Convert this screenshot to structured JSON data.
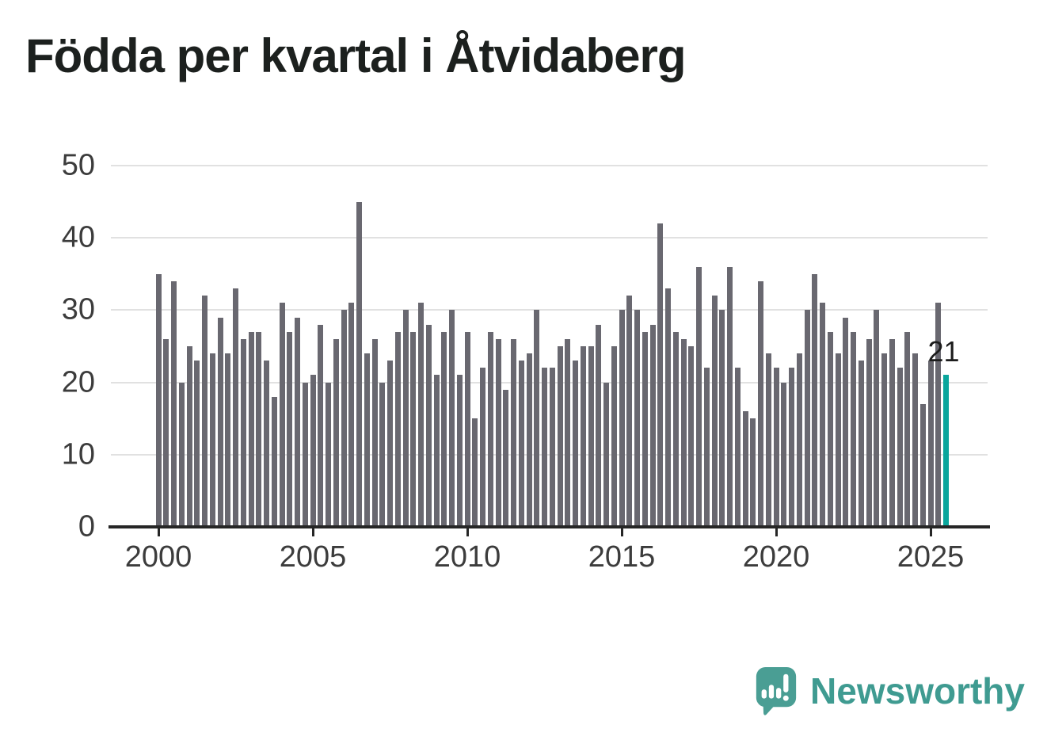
{
  "title": "Födda per kvartal i Åtvidaberg",
  "annotation": {
    "last_value_label": "21"
  },
  "branding": {
    "name": "Newsworthy"
  },
  "colors": {
    "bar": "#696870",
    "highlight": "#0aa69c",
    "grid": "#e1e1e1",
    "axis": "#262626",
    "tick_label": "#3c3c3c",
    "title": "#1c201e",
    "brand_text": "#3f9b91",
    "brand_icon": "#4a9e94",
    "background": "#ffffff"
  },
  "chart_data": {
    "type": "bar",
    "title": "Födda per kvartal i Åtvidaberg",
    "frequency": "quarterly",
    "x_start": "2000-Q1",
    "x_end": "2025-Q3",
    "ylim": [
      0,
      50
    ],
    "grid": "horizontal",
    "y_ticks": [
      0,
      10,
      20,
      30,
      40,
      50
    ],
    "x_tick_years": [
      2000,
      2005,
      2010,
      2015,
      2020,
      2025
    ],
    "legend": "none",
    "highlight_last_bar": true,
    "last_bar_label": "21",
    "categories": [
      "2000Q1",
      "2000Q2",
      "2000Q3",
      "2000Q4",
      "2001Q1",
      "2001Q2",
      "2001Q3",
      "2001Q4",
      "2002Q1",
      "2002Q2",
      "2002Q3",
      "2002Q4",
      "2003Q1",
      "2003Q2",
      "2003Q3",
      "2003Q4",
      "2004Q1",
      "2004Q2",
      "2004Q3",
      "2004Q4",
      "2005Q1",
      "2005Q2",
      "2005Q3",
      "2005Q4",
      "2006Q1",
      "2006Q2",
      "2006Q3",
      "2006Q4",
      "2007Q1",
      "2007Q2",
      "2007Q3",
      "2007Q4",
      "2008Q1",
      "2008Q2",
      "2008Q3",
      "2008Q4",
      "2009Q1",
      "2009Q2",
      "2009Q3",
      "2009Q4",
      "2010Q1",
      "2010Q2",
      "2010Q3",
      "2010Q4",
      "2011Q1",
      "2011Q2",
      "2011Q3",
      "2011Q4",
      "2012Q1",
      "2012Q2",
      "2012Q3",
      "2012Q4",
      "2013Q1",
      "2013Q2",
      "2013Q3",
      "2013Q4",
      "2014Q1",
      "2014Q2",
      "2014Q3",
      "2014Q4",
      "2015Q1",
      "2015Q2",
      "2015Q3",
      "2015Q4",
      "2016Q1",
      "2016Q2",
      "2016Q3",
      "2016Q4",
      "2017Q1",
      "2017Q2",
      "2017Q3",
      "2017Q4",
      "2018Q1",
      "2018Q2",
      "2018Q3",
      "2018Q4",
      "2019Q1",
      "2019Q2",
      "2019Q3",
      "2019Q4",
      "2020Q1",
      "2020Q2",
      "2020Q3",
      "2020Q4",
      "2021Q1",
      "2021Q2",
      "2021Q3",
      "2021Q4",
      "2022Q1",
      "2022Q2",
      "2022Q3",
      "2022Q4",
      "2023Q1",
      "2023Q2",
      "2023Q3",
      "2023Q4",
      "2024Q1",
      "2024Q2",
      "2024Q3",
      "2024Q4",
      "2025Q1",
      "2025Q2",
      "2025Q3"
    ],
    "values": [
      35,
      26,
      34,
      20,
      25,
      23,
      32,
      24,
      29,
      24,
      33,
      26,
      27,
      27,
      23,
      18,
      31,
      27,
      29,
      20,
      21,
      28,
      20,
      26,
      30,
      31,
      45,
      24,
      26,
      20,
      23,
      27,
      30,
      27,
      31,
      28,
      21,
      27,
      30,
      21,
      27,
      15,
      22,
      27,
      26,
      19,
      26,
      23,
      24,
      30,
      22,
      22,
      25,
      26,
      23,
      25,
      25,
      28,
      20,
      25,
      30,
      32,
      30,
      27,
      28,
      42,
      33,
      27,
      26,
      25,
      36,
      22,
      32,
      30,
      36,
      22,
      16,
      15,
      34,
      24,
      22,
      20,
      22,
      24,
      30,
      35,
      31,
      27,
      24,
      29,
      27,
      23,
      26,
      30,
      24,
      26,
      22,
      27,
      24,
      17,
      23,
      31,
      21
    ]
  }
}
